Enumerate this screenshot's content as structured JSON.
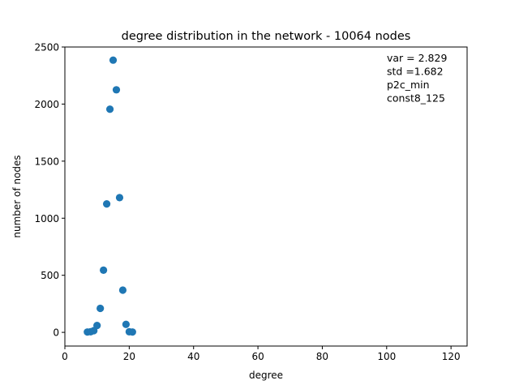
{
  "chart_data": {
    "type": "scatter",
    "title": "degree distribution in the network - 10064 nodes",
    "xlabel": "degree",
    "ylabel": "number of nodes",
    "xlim": [
      0,
      125
    ],
    "ylim": [
      -120,
      2500
    ],
    "xticks": [
      0,
      20,
      40,
      60,
      80,
      100,
      120
    ],
    "yticks": [
      0,
      500,
      1000,
      1500,
      2000,
      2500
    ],
    "grid": false,
    "marker_color": "#1f77b4",
    "annotations": [
      "var = 2.829",
      "std =1.682",
      "p2c_min",
      "const8_125"
    ],
    "points": [
      {
        "x": 7,
        "y": 3
      },
      {
        "x": 8,
        "y": 5
      },
      {
        "x": 9,
        "y": 15
      },
      {
        "x": 10,
        "y": 60
      },
      {
        "x": 11,
        "y": 210
      },
      {
        "x": 12,
        "y": 545
      },
      {
        "x": 13,
        "y": 1125
      },
      {
        "x": 14,
        "y": 1955
      },
      {
        "x": 15,
        "y": 2385
      },
      {
        "x": 16,
        "y": 2125
      },
      {
        "x": 17,
        "y": 1180
      },
      {
        "x": 18,
        "y": 370
      },
      {
        "x": 19,
        "y": 70
      },
      {
        "x": 20,
        "y": 5
      },
      {
        "x": 21,
        "y": 3
      }
    ]
  }
}
